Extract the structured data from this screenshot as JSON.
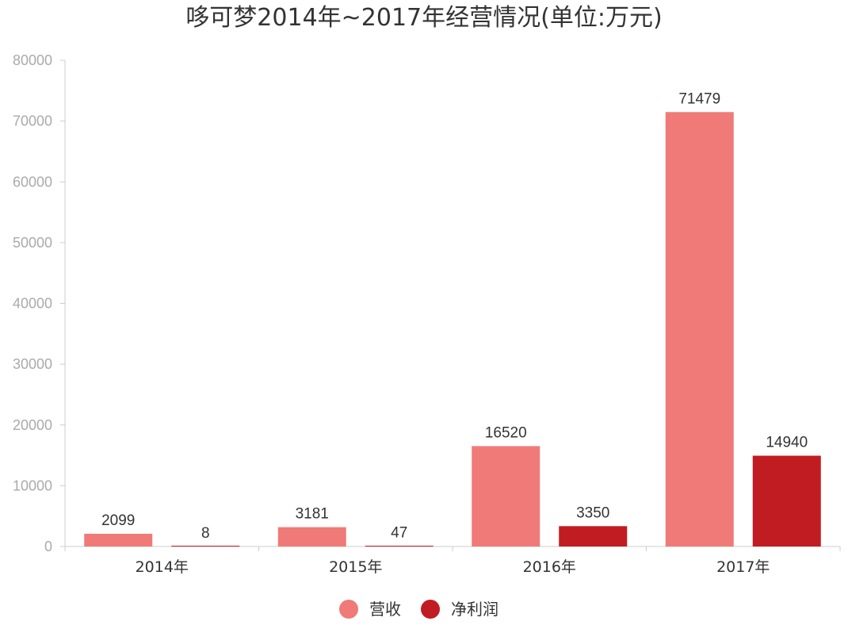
{
  "chart_data": {
    "type": "bar",
    "title": "哆可梦2014年~2017年经营情况(单位:万元)",
    "categories": [
      "2014年",
      "2015年",
      "2016年",
      "2017年"
    ],
    "series": [
      {
        "name": "营收",
        "values": [
          2099,
          3181,
          16520,
          71479
        ],
        "color": "#ef7a77"
      },
      {
        "name": "净利润",
        "values": [
          8,
          47,
          3350,
          14940
        ],
        "color": "#c11c21"
      }
    ],
    "ylim": [
      0,
      80000
    ],
    "yticks": [
      "0",
      "10000",
      "20000",
      "30000",
      "40000",
      "50000",
      "60000",
      "70000",
      "80000"
    ],
    "xlabel": "",
    "ylabel": "",
    "grid": false,
    "legend_position": "bottom-center"
  }
}
